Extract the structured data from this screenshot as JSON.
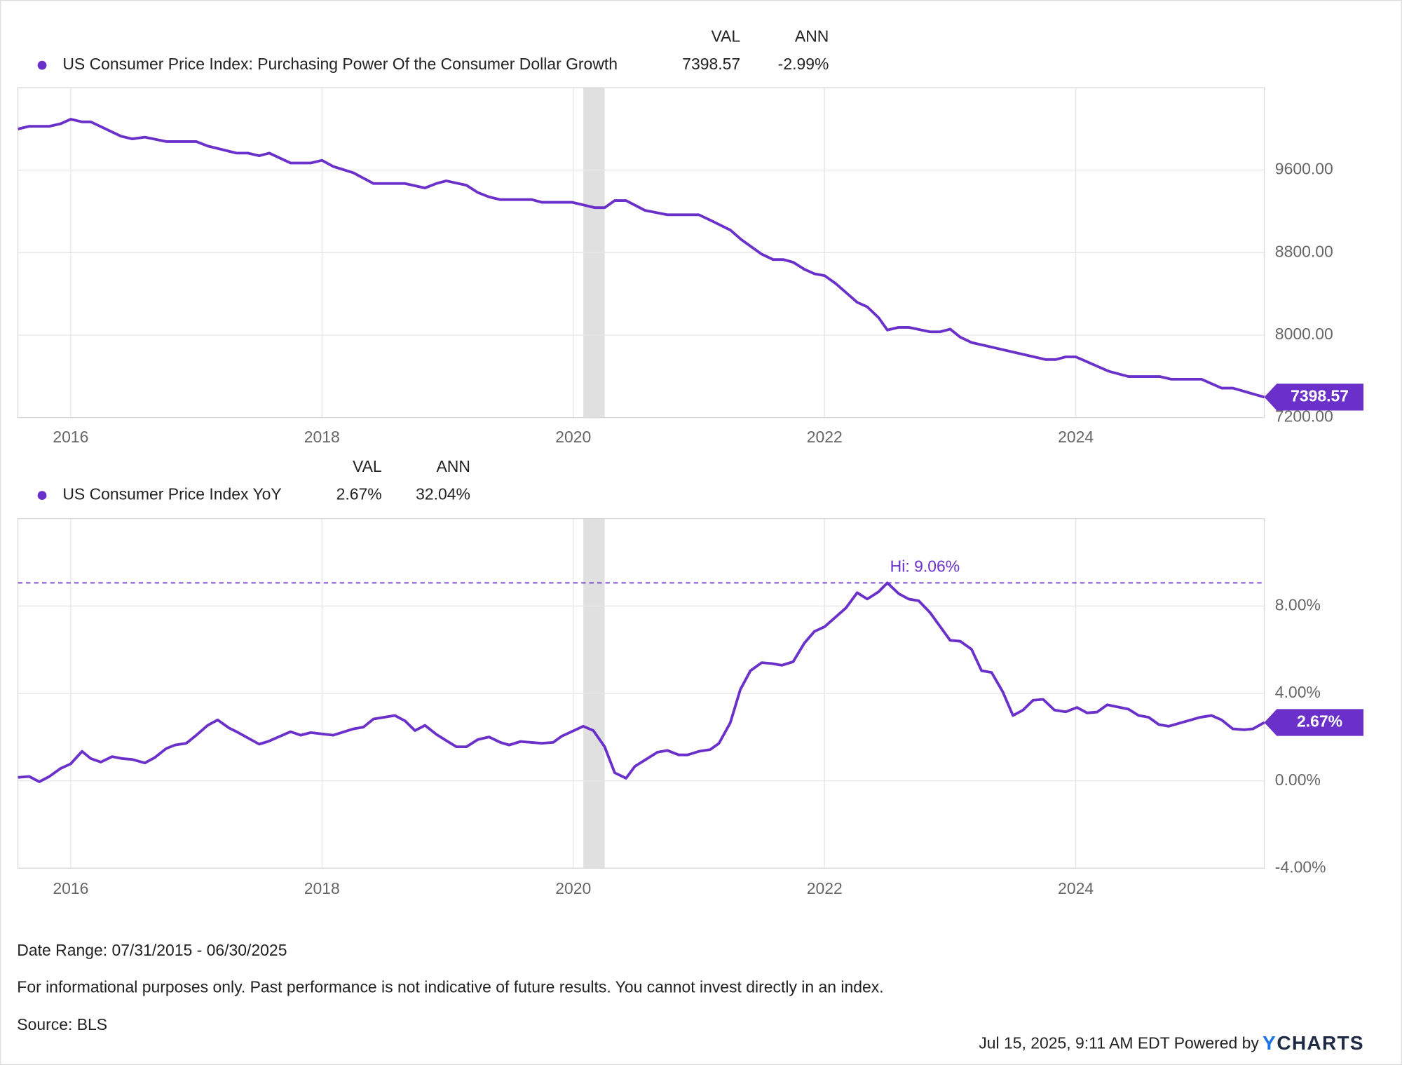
{
  "chart_data": [
    {
      "type": "line",
      "legend": {
        "val_header": "VAL",
        "ann_header": "ANN",
        "val": "7398.57",
        "ann": "-2.99%"
      },
      "end_label": "7398.57",
      "series": [
        {
          "name": "US Consumer Price Index: Purchasing Power Of the Consumer Dollar Growth",
          "color": "#6a30c9",
          "values": [
            9999,
            10025,
            10025,
            10050,
            10094,
            10068,
            10068,
            9929,
            9903,
            9920,
            9877,
            9877,
            9834,
            9765,
            9765,
            9739,
            9765,
            9669,
            9669,
            9695,
            9635,
            9574,
            9470,
            9470,
            9427,
            9470,
            9496,
            9453,
            9383,
            9340,
            9314,
            9314,
            9288,
            9288,
            9236,
            9236,
            9305,
            9305,
            9210,
            9167,
            9167,
            9115,
            9019,
            8924,
            8785,
            8733,
            8733,
            8707,
            8638,
            8595,
            8577,
            8499,
            8318,
            8274,
            8170,
            8049,
            8075,
            8075,
            8032,
            8032,
            8058,
            7980,
            7928,
            7763,
            7763,
            7789,
            7789,
            7650,
            7598,
            7598,
            7572,
            7572,
            7486,
            7486,
            7398.57
          ]
        }
      ],
      "x": [
        2015.58,
        2015.67,
        2015.83,
        2015.92,
        2016.0,
        2016.09,
        2016.16,
        2016.4,
        2016.49,
        2016.59,
        2016.76,
        2017.0,
        2017.09,
        2017.32,
        2017.41,
        2017.5,
        2017.58,
        2017.75,
        2017.91,
        2018.0,
        2018.09,
        2018.25,
        2018.41,
        2018.66,
        2018.82,
        2018.91,
        2018.99,
        2019.15,
        2019.24,
        2019.33,
        2019.42,
        2019.67,
        2019.75,
        2019.99,
        2020.17,
        2020.25,
        2020.33,
        2020.42,
        2020.57,
        2020.75,
        2021.0,
        2021.09,
        2021.25,
        2021.34,
        2021.5,
        2021.59,
        2021.67,
        2021.75,
        2021.84,
        2021.92,
        2022.0,
        2022.09,
        2022.26,
        2022.34,
        2022.43,
        2022.5,
        2022.59,
        2022.67,
        2022.84,
        2022.92,
        2023.0,
        2023.08,
        2023.17,
        2023.76,
        2023.84,
        2023.92,
        2024.0,
        2024.26,
        2024.42,
        2024.67,
        2024.76,
        2025.0,
        2025.16,
        2025.25,
        2025.5
      ],
      "xlim": [
        2015.58,
        2025.5
      ],
      "xticks": [
        2016,
        2018,
        2020,
        2022,
        2024
      ],
      "ylim": [
        7200,
        10400
      ],
      "yticks": [
        {
          "value": 7200,
          "label": "7200.00"
        },
        {
          "value": 8000,
          "label": "8000.00"
        },
        {
          "value": 8800,
          "label": "8800.00"
        },
        {
          "value": 9600,
          "label": "9600.00"
        }
      ],
      "shaded": [
        [
          2020.08,
          2020.25
        ]
      ],
      "shade_color": "#e0e0e0",
      "grid": true
    },
    {
      "type": "line",
      "legend": {
        "val_header": "VAL",
        "ann_header": "ANN",
        "val": "2.67%",
        "ann": "32.04%"
      },
      "end_label": "2.67%",
      "hi_label": "Hi: 9.06%",
      "hi_value": 9.06,
      "series": [
        {
          "name": "US Consumer Price Index YoY",
          "color": "#6a30c9",
          "values": [
            0.16,
            0.2,
            -0.04,
            0.2,
            0.57,
            0.78,
            1.35,
            1.02,
            0.86,
            1.11,
            1.02,
            0.98,
            0.82,
            1.07,
            1.48,
            1.64,
            1.72,
            2.09,
            2.54,
            2.79,
            2.42,
            2.25,
            1.68,
            1.8,
            2.25,
            2.09,
            2.21,
            2.09,
            2.38,
            2.46,
            2.83,
            2.99,
            2.75,
            2.3,
            2.54,
            2.13,
            1.84,
            1.56,
            1.56,
            1.89,
            2.01,
            1.76,
            1.64,
            1.8,
            1.72,
            1.76,
            2.05,
            2.5,
            2.3,
            1.56,
            0.37,
            0.12,
            0.66,
            1.31,
            1.39,
            1.19,
            1.19,
            1.35,
            1.43,
            1.72,
            2.66,
            4.18,
            5.04,
            5.41,
            5.37,
            5.29,
            5.45,
            6.31,
            6.84,
            7.05,
            7.91,
            8.61,
            8.32,
            8.65,
            9.06,
            8.57,
            8.32,
            8.24,
            7.7,
            6.43,
            6.39,
            6.02,
            5.04,
            4.96,
            4.06,
            2.99,
            3.24,
            3.69,
            3.73,
            3.24,
            3.16,
            3.36,
            3.11,
            3.15,
            3.48,
            3.28,
            2.99,
            2.91,
            2.58,
            2.5,
            2.91,
            2.99,
            2.79,
            2.38,
            2.34,
            2.38,
            2.67
          ]
        }
      ],
      "x": [
        2015.58,
        2015.67,
        2015.75,
        2015.83,
        2015.92,
        2016.0,
        2016.09,
        2016.16,
        2016.24,
        2016.33,
        2016.41,
        2016.49,
        2016.59,
        2016.67,
        2016.76,
        2016.83,
        2016.92,
        2017.0,
        2017.09,
        2017.17,
        2017.26,
        2017.32,
        2017.5,
        2017.57,
        2017.75,
        2017.83,
        2017.91,
        2018.09,
        2018.25,
        2018.33,
        2018.41,
        2018.58,
        2018.66,
        2018.74,
        2018.82,
        2018.91,
        2018.99,
        2019.07,
        2019.15,
        2019.24,
        2019.33,
        2019.42,
        2019.49,
        2019.58,
        2019.75,
        2019.84,
        2019.91,
        2020.08,
        2020.16,
        2020.25,
        2020.33,
        2020.42,
        2020.49,
        2020.67,
        2020.75,
        2020.84,
        2020.91,
        2021.0,
        2021.09,
        2021.16,
        2021.25,
        2021.33,
        2021.41,
        2021.5,
        2021.58,
        2021.66,
        2021.75,
        2021.84,
        2021.92,
        2022.0,
        2022.17,
        2022.26,
        2022.34,
        2022.43,
        2022.5,
        2022.59,
        2022.67,
        2022.75,
        2022.84,
        2023.0,
        2023.08,
        2023.17,
        2023.25,
        2023.33,
        2023.42,
        2023.5,
        2023.58,
        2023.66,
        2023.74,
        2023.83,
        2023.92,
        2024.01,
        2024.09,
        2024.17,
        2024.25,
        2024.42,
        2024.5,
        2024.58,
        2024.66,
        2024.74,
        2024.99,
        2025.08,
        2025.16,
        2025.25,
        2025.34,
        2025.41,
        2025.5
      ],
      "xlim": [
        2015.58,
        2025.5
      ],
      "xticks": [
        2016,
        2018,
        2020,
        2022,
        2024
      ],
      "ylim": [
        -4,
        12
      ],
      "yticks": [
        {
          "value": -4,
          "label": "-4.00%"
        },
        {
          "value": 0,
          "label": "0.00%"
        },
        {
          "value": 4,
          "label": "4.00%"
        },
        {
          "value": 8,
          "label": "8.00%"
        }
      ],
      "shaded": [
        [
          2020.08,
          2020.25
        ]
      ],
      "shade_color": "#e0e0e0",
      "grid": true
    }
  ],
  "footer": {
    "date_range": "Date Range: 07/31/2015 - 06/30/2025",
    "disclaimer": "For informational purposes only. Past performance is not indicative of future results. You cannot invest directly in an index.",
    "source": "Source: BLS",
    "timestamp": "Jul 15, 2025, 9:11 AM EDT Powered by",
    "logo_y": "Y",
    "logo_rest": "CHARTS"
  }
}
